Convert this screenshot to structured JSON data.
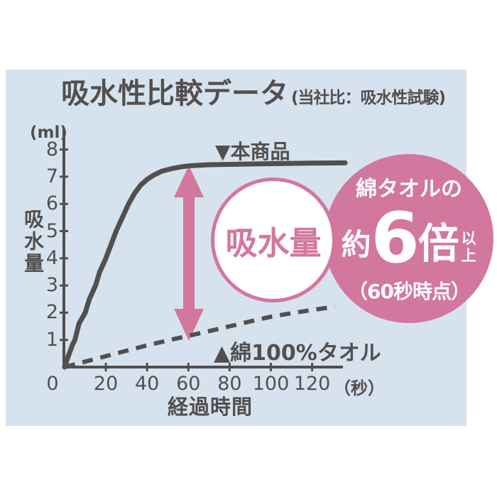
{
  "colors": {
    "panel_background": "#d6e3ee",
    "line_gray": "#534f4f",
    "accent_pink": "#d2779e",
    "badge_text": "#ffffff"
  },
  "header": {
    "title": "吸水性比較データ",
    "subtitle": "(当社比：吸水性試験)"
  },
  "chart_data": {
    "type": "line",
    "title": "吸水性比較データ",
    "subtitle": "(当社比：吸水性試験)",
    "ylabel": "吸水量",
    "y_unit": "(ml)",
    "xlabel": "経過時間",
    "x_unit": "（秒）",
    "xlim": [
      0,
      136
    ],
    "ylim": [
      0,
      8.7
    ],
    "x_ticks": [
      0,
      20,
      40,
      60,
      80,
      100,
      120
    ],
    "y_ticks": [
      1,
      2,
      3,
      4,
      5,
      6,
      7,
      8
    ],
    "grid": false,
    "legend_position": "inline-annotations",
    "series": [
      {
        "name": "本商品",
        "label": "▼本商品",
        "style": "solid",
        "x": [
          0,
          2,
          4,
          5,
          7,
          10,
          12,
          15,
          17,
          20,
          22.5,
          25,
          28,
          31,
          34,
          37,
          40,
          43,
          47,
          52,
          57,
          62,
          70,
          85,
          100,
          120,
          136
        ],
        "values": [
          0,
          0.45,
          0.85,
          1,
          1.6,
          2,
          2.5,
          3,
          3.5,
          4,
          4.5,
          5,
          5.5,
          6,
          6.4,
          6.7,
          6.9,
          7.05,
          7.2,
          7.3,
          7.37,
          7.41,
          7.44,
          7.46,
          7.48,
          7.5,
          7.51
        ]
      },
      {
        "name": "綿100%タオル",
        "label": "▲綿100%タオル",
        "style": "dashed",
        "x": [
          0,
          10,
          20,
          30,
          40,
          50,
          60,
          70,
          80,
          90,
          100,
          110,
          120,
          131
        ],
        "values": [
          0,
          0.2,
          0.4,
          0.6,
          0.8,
          0.98,
          1.15,
          1.32,
          1.5,
          1.68,
          1.85,
          1.98,
          2.1,
          2.22
        ]
      }
    ],
    "annotation_arrow": {
      "x": 60,
      "from_value": 1.15,
      "to_value": 7.4
    }
  },
  "bubble": {
    "label": "吸水量"
  },
  "badge": {
    "line1": "綿タオルの",
    "prefix": "約",
    "multiplier": "6",
    "unit": "倍",
    "suffix": "以上",
    "note": "（60秒時点）"
  },
  "legend": {
    "product": "▼本商品",
    "cotton": "▲綿100%タオル"
  }
}
